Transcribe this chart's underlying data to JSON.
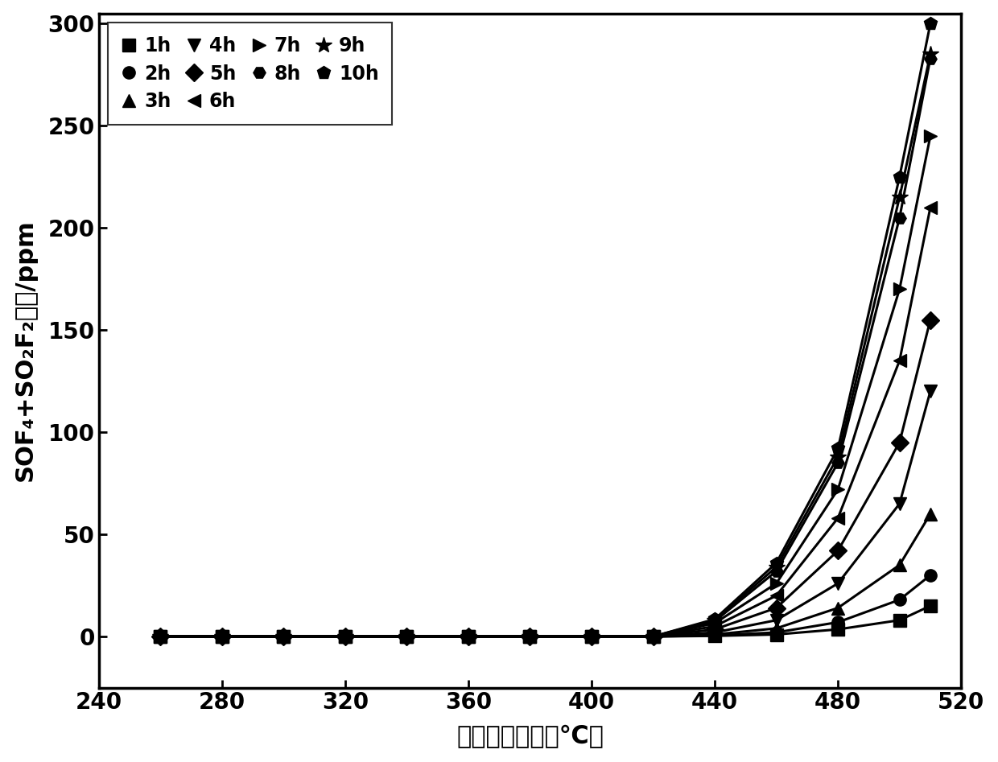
{
  "xlabel": "过热故障温度（℃）",
  "ylabel": "SOF₄+SO₂F₂浓度/ppm",
  "xlim": [
    248,
    520
  ],
  "ylim": [
    -25,
    305
  ],
  "xticks": [
    240,
    280,
    320,
    360,
    400,
    440,
    480,
    520
  ],
  "yticks": [
    0,
    50,
    100,
    150,
    200,
    250,
    300
  ],
  "series": [
    {
      "label": "1h",
      "marker": "s",
      "x": [
        260,
        280,
        300,
        320,
        340,
        360,
        380,
        400,
        420,
        440,
        460,
        480,
        500,
        510
      ],
      "y": [
        0,
        0,
        0,
        0,
        0,
        0,
        0,
        0,
        0,
        0.3,
        1.0,
        3.5,
        8.0,
        15
      ]
    },
    {
      "label": "2h",
      "marker": "o",
      "x": [
        260,
        280,
        300,
        320,
        340,
        360,
        380,
        400,
        420,
        440,
        460,
        480,
        500,
        510
      ],
      "y": [
        0,
        0,
        0,
        0,
        0,
        0,
        0,
        0,
        0,
        0.5,
        2.0,
        7.0,
        18,
        30
      ]
    },
    {
      "label": "3h",
      "marker": "^",
      "x": [
        260,
        280,
        300,
        320,
        340,
        360,
        380,
        400,
        420,
        440,
        460,
        480,
        500,
        510
      ],
      "y": [
        0,
        0,
        0,
        0,
        0,
        0,
        0,
        0,
        0,
        1.0,
        4.0,
        14,
        35,
        60
      ]
    },
    {
      "label": "4h",
      "marker": "v",
      "x": [
        260,
        280,
        300,
        320,
        340,
        360,
        380,
        400,
        420,
        440,
        460,
        480,
        500,
        510
      ],
      "y": [
        0,
        0,
        0,
        0,
        0,
        0,
        0,
        0,
        0,
        2.0,
        8.0,
        26,
        65,
        120
      ]
    },
    {
      "label": "5h",
      "marker": "D",
      "x": [
        260,
        280,
        300,
        320,
        340,
        360,
        380,
        400,
        420,
        440,
        460,
        480,
        500,
        510
      ],
      "y": [
        0,
        0,
        0,
        0,
        0,
        0,
        0,
        0,
        0,
        3.5,
        14,
        42,
        95,
        155
      ]
    },
    {
      "label": "6h",
      "marker": "<",
      "x": [
        260,
        280,
        300,
        320,
        340,
        360,
        380,
        400,
        420,
        440,
        460,
        480,
        500,
        510
      ],
      "y": [
        0,
        0,
        0,
        0,
        0,
        0,
        0,
        0,
        0,
        5.0,
        20,
        58,
        135,
        210
      ]
    },
    {
      "label": "7h",
      "marker": ">",
      "x": [
        260,
        280,
        300,
        320,
        340,
        360,
        380,
        400,
        420,
        440,
        460,
        480,
        500,
        510
      ],
      "y": [
        0,
        0,
        0,
        0,
        0,
        0,
        0,
        0,
        0,
        6.5,
        26,
        72,
        170,
        245
      ]
    },
    {
      "label": "8h",
      "marker": "H",
      "x": [
        260,
        280,
        300,
        320,
        340,
        360,
        380,
        400,
        420,
        440,
        460,
        480,
        500,
        510
      ],
      "y": [
        0,
        0,
        0,
        0,
        0,
        0,
        0,
        0,
        0,
        7.5,
        32,
        85,
        205,
        283
      ]
    },
    {
      "label": "9h",
      "marker": "*",
      "x": [
        260,
        280,
        300,
        320,
        340,
        360,
        380,
        400,
        420,
        440,
        460,
        480,
        500,
        510
      ],
      "y": [
        0,
        0,
        0,
        0,
        0,
        0,
        0,
        0,
        0,
        8.0,
        34,
        88,
        215,
        285
      ]
    },
    {
      "label": "10h",
      "marker": "p",
      "x": [
        260,
        280,
        300,
        320,
        340,
        360,
        380,
        400,
        420,
        440,
        460,
        480,
        500,
        510
      ],
      "y": [
        0,
        0,
        0,
        0,
        0,
        0,
        0,
        0,
        0,
        8.5,
        36,
        92,
        225,
        300
      ]
    }
  ],
  "background_color": "#ffffff",
  "line_color": "#000000",
  "marker_color": "#000000",
  "marker_size": 11,
  "linewidth": 2.2,
  "label_fontsize": 22,
  "tick_fontsize": 20,
  "legend_fontsize": 17
}
